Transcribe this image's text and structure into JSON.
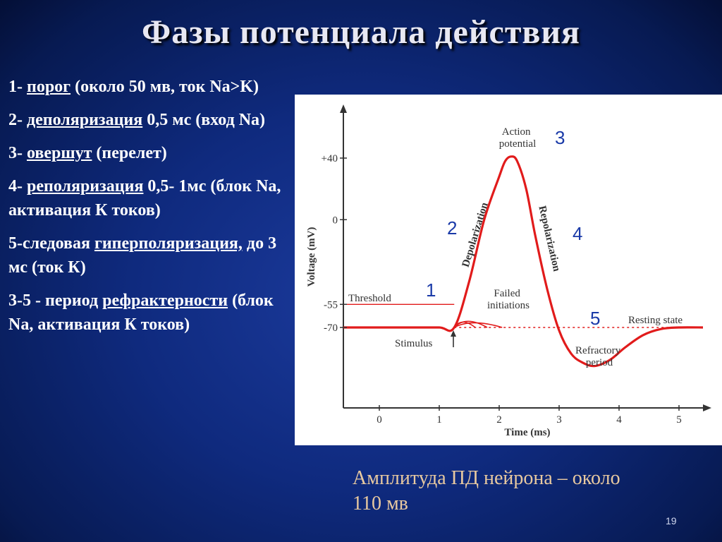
{
  "title": "Фазы потенциала действия",
  "phases_list": [
    {
      "prefix": "1- ",
      "term": "порог",
      "rest": " (около 50 мв, ток Na>K)"
    },
    {
      "prefix": "2- ",
      "term": "деполяризация",
      "rest": " 0,5 мс (вход Na)"
    },
    {
      "prefix": "3- ",
      "term": "овершут",
      "rest": " (перелет)"
    },
    {
      "prefix": "4- ",
      "term": "реполяризация",
      "rest": " 0,5- 1мс (блок Na, активация К токов)"
    },
    {
      "prefix": "5-следовая ",
      "term": "гиперполяризация,",
      "rest": " до 3 мс (ток К)"
    },
    {
      "prefix": "3-5 - период ",
      "term": "рефрактерности",
      "rest": " (блок Na, активация К токов)"
    }
  ],
  "chart_data": {
    "type": "line",
    "xlabel": "Time (ms)",
    "ylabel": "Voltage (mV)",
    "x_ticks": [
      "0",
      "1",
      "2",
      "3",
      "4",
      "5"
    ],
    "y_ticks": [
      "+40",
      "0",
      "-55",
      "-70"
    ],
    "series": [
      {
        "name": "",
        "color": "#e11b1b",
        "x": [
          -0.6,
          0,
          0.5,
          1.0,
          1.25,
          1.5,
          1.75,
          2.0,
          2.1,
          2.2,
          2.3,
          2.45,
          2.6,
          2.8,
          3.0,
          3.2,
          3.4,
          3.6,
          3.85,
          4.1,
          4.4,
          4.7,
          5.0,
          5.4
        ],
        "y": [
          -70,
          -70,
          -70,
          -70,
          -70,
          -40,
          0,
          28,
          38,
          41,
          38,
          20,
          -10,
          -45,
          -72,
          -87,
          -93,
          -95,
          -91,
          -83,
          -75,
          -71,
          -70,
          -70
        ]
      }
    ],
    "resting_level": -70,
    "threshold_level": -55,
    "annotations": {
      "action_potential": "Action potential",
      "depolarization": "Depolarization",
      "repolarization": "Repolarization",
      "threshold": "Threshold",
      "failed_initiations": "Failed initiations",
      "resting_state": "Resting state",
      "stimulus": "Stimulus",
      "refractory_period": "Refractory period"
    },
    "phase_numbers": [
      "1",
      "2",
      "3",
      "4",
      "5"
    ]
  },
  "amplitude_note": "Амплитуда ПД нейрона – около 110 мв",
  "page_number": "19",
  "colors": {
    "background": "#0f2a7e",
    "curve": "#e11b1b",
    "phase_number": "#1a3aa8",
    "note": "#e8c9a0"
  }
}
